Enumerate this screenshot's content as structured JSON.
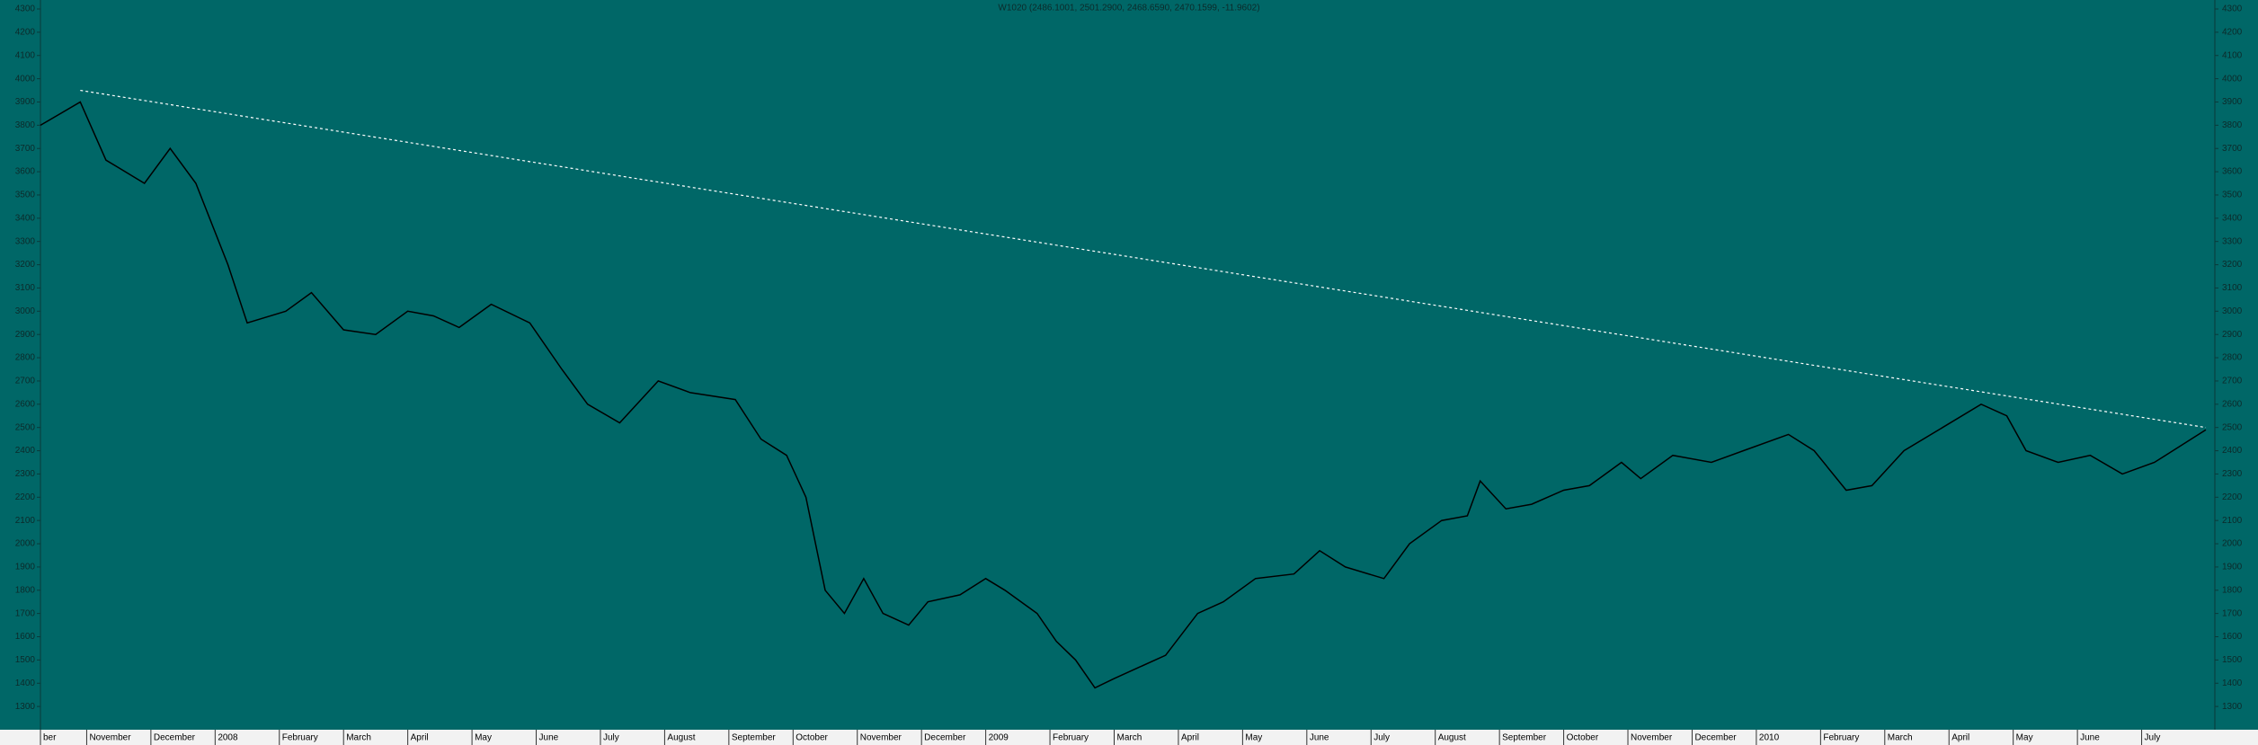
{
  "chart_data": {
    "type": "line",
    "title": "W1020 (2486.1001, 2501.2900, 2468.6590, 2470.1599, -11.9602)",
    "xlim": [
      0.28,
      34.14
    ],
    "xticks": [
      {
        "value": 0.28,
        "label": "ber"
      },
      {
        "value": 1,
        "label": "November"
      },
      {
        "value": 2,
        "label": "December"
      },
      {
        "value": 3,
        "label": "2008"
      },
      {
        "value": 4,
        "label": "February"
      },
      {
        "value": 5,
        "label": "March"
      },
      {
        "value": 6,
        "label": "April"
      },
      {
        "value": 7,
        "label": "May"
      },
      {
        "value": 8,
        "label": "June"
      },
      {
        "value": 9,
        "label": "July"
      },
      {
        "value": 10,
        "label": "August"
      },
      {
        "value": 11,
        "label": "September"
      },
      {
        "value": 12,
        "label": "October"
      },
      {
        "value": 13,
        "label": "November"
      },
      {
        "value": 14,
        "label": "December"
      },
      {
        "value": 15,
        "label": "2009"
      },
      {
        "value": 16,
        "label": "February"
      },
      {
        "value": 17,
        "label": "March"
      },
      {
        "value": 18,
        "label": "April"
      },
      {
        "value": 19,
        "label": "May"
      },
      {
        "value": 20,
        "label": "June"
      },
      {
        "value": 21,
        "label": "July"
      },
      {
        "value": 22,
        "label": "August"
      },
      {
        "value": 23,
        "label": "September"
      },
      {
        "value": 24,
        "label": "October"
      },
      {
        "value": 25,
        "label": "November"
      },
      {
        "value": 26,
        "label": "December"
      },
      {
        "value": 27,
        "label": "2010"
      },
      {
        "value": 28,
        "label": "February"
      },
      {
        "value": 29,
        "label": "March"
      },
      {
        "value": 30,
        "label": "April"
      },
      {
        "value": 31,
        "label": "May"
      },
      {
        "value": 32,
        "label": "June"
      },
      {
        "value": 33,
        "label": "July"
      }
    ],
    "ylim": [
      1200,
      4300
    ],
    "yticks": [
      1300,
      1400,
      1500,
      1600,
      1700,
      1800,
      1900,
      2000,
      2100,
      2200,
      2300,
      2400,
      2500,
      2600,
      2700,
      2800,
      2900,
      3000,
      3100,
      3200,
      3300,
      3400,
      3500,
      3600,
      3700,
      3800,
      3900,
      4000,
      4100,
      4200,
      4300
    ],
    "x": [
      0.28,
      0.9,
      1.3,
      1.9,
      2.3,
      2.7,
      3.2,
      3.5,
      4.1,
      4.5,
      5.0,
      5.5,
      6.0,
      6.4,
      6.8,
      7.3,
      7.9,
      8.4,
      8.8,
      9.3,
      9.9,
      10.4,
      11.1,
      11.5,
      11.9,
      12.2,
      12.5,
      12.8,
      13.1,
      13.4,
      13.8,
      14.1,
      14.6,
      15.0,
      15.3,
      15.8,
      16.1,
      16.4,
      16.7,
      17.0,
      17.4,
      17.8,
      18.3,
      18.7,
      19.2,
      19.8,
      20.2,
      20.6,
      21.2,
      21.6,
      22.1,
      22.5,
      22.7,
      23.1,
      23.5,
      24.0,
      24.4,
      24.9,
      25.2,
      25.7,
      26.3,
      26.8,
      27.5,
      27.9,
      28.4,
      28.8,
      29.3,
      29.9,
      30.5,
      30.9,
      31.2,
      31.7,
      32.2,
      32.7,
      33.2,
      34.0
    ],
    "series": [
      {
        "color": "#000000",
        "values": [
          3800,
          3900,
          3650,
          3550,
          3700,
          3550,
          3200,
          2950,
          3000,
          3080,
          2920,
          2900,
          3000,
          2980,
          2930,
          3030,
          2950,
          2750,
          2600,
          2520,
          2700,
          2650,
          2620,
          2450,
          2380,
          2200,
          1800,
          1700,
          1850,
          1700,
          1650,
          1750,
          1780,
          1850,
          1800,
          1700,
          1580,
          1500,
          1380,
          1420,
          1470,
          1520,
          1700,
          1750,
          1850,
          1870,
          1970,
          1900,
          1850,
          2000,
          2100,
          2120,
          2270,
          2150,
          2170,
          2230,
          2250,
          2350,
          2280,
          2380,
          2350,
          2400,
          2470,
          2400,
          2230,
          2250,
          2400,
          2500,
          2600,
          2550,
          2400,
          2350,
          2380,
          2300,
          2350,
          2490
        ]
      }
    ],
    "trendline": {
      "color": "#ffffff",
      "x": [
        0.9,
        34.0
      ],
      "y": [
        3950,
        2500
      ]
    }
  }
}
